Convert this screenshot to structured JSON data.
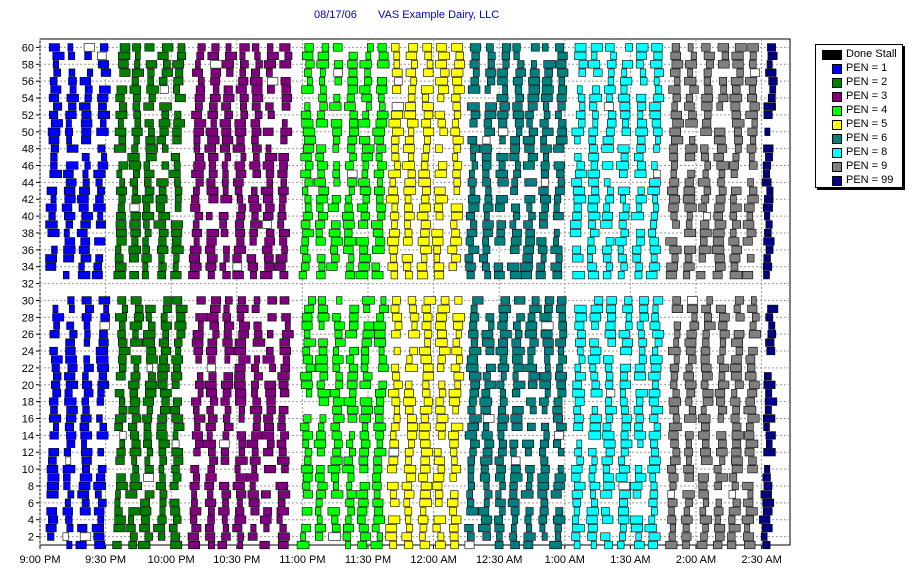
{
  "header": {
    "date": "08/17/06",
    "company": "VAS Example Dairy, LLC"
  },
  "colors": {
    "done": "#000000",
    "pen1": "#0000ff",
    "pen2": "#008000",
    "pen3": "#800080",
    "pen4": "#00ff00",
    "pen5": "#ffff00",
    "pen6": "#008080",
    "pen8": "#00ffff",
    "pen9": "#808080",
    "pen99": "#000080",
    "grid": "#999999"
  },
  "legend": [
    {
      "label": "Done Stall",
      "color_key": "done"
    },
    {
      "label": "PEN = 1",
      "color_key": "pen1"
    },
    {
      "label": "PEN = 2",
      "color_key": "pen2"
    },
    {
      "label": "PEN = 3",
      "color_key": "pen3"
    },
    {
      "label": "PEN = 4",
      "color_key": "pen4"
    },
    {
      "label": "PEN = 5",
      "color_key": "pen5"
    },
    {
      "label": "PEN = 6",
      "color_key": "pen6"
    },
    {
      "label": "PEN = 8",
      "color_key": "pen8"
    },
    {
      "label": "PEN = 9",
      "color_key": "pen9"
    },
    {
      "label": "PEN = 99",
      "color_key": "pen99"
    }
  ],
  "chart_data": {
    "type": "scatter",
    "title": "",
    "xlabel": "",
    "ylabel": "",
    "x_ticks": [
      "9:00 PM",
      "9:30 PM",
      "10:00 PM",
      "10:30 PM",
      "11:00 PM",
      "11:30 PM",
      "12:00 AM",
      "12:30 AM",
      "1:00 AM",
      "1:30 AM",
      "2:00 AM",
      "2:30 AM"
    ],
    "xlim": [
      "9:00 PM",
      "2:43 AM"
    ],
    "y_ticks": [
      2,
      4,
      6,
      8,
      10,
      12,
      14,
      16,
      18,
      20,
      22,
      24,
      26,
      28,
      30,
      32,
      34,
      36,
      38,
      40,
      42,
      44,
      46,
      48,
      50,
      52,
      54,
      56,
      58,
      60
    ],
    "ylim": [
      1,
      61
    ],
    "grid": true,
    "legend_position": "right",
    "series": [
      {
        "name": "PEN = 1",
        "color_key": "pen1",
        "start": "9:04 PM",
        "end": "9:33 PM"
      },
      {
        "name": "PEN = 2",
        "color_key": "pen2",
        "start": "9:35 PM",
        "end": "10:07 PM"
      },
      {
        "name": "PEN = 3",
        "color_key": "pen3",
        "start": "10:10 PM",
        "end": "10:56 PM"
      },
      {
        "name": "PEN = 4",
        "color_key": "pen4",
        "start": "11:00 PM",
        "end": "11:40 PM"
      },
      {
        "name": "PEN = 5",
        "color_key": "pen5",
        "start": "11:40 PM",
        "end": "12:15 AM"
      },
      {
        "name": "PEN = 6",
        "color_key": "pen6",
        "start": "12:16 AM",
        "end": "1:02 AM"
      },
      {
        "name": "PEN = 8",
        "color_key": "pen8",
        "start": "1:04 AM",
        "end": "1:46 AM"
      },
      {
        "name": "PEN = 9",
        "color_key": "pen9",
        "start": "1:48 AM",
        "end": "2:30 AM"
      },
      {
        "name": "PEN = 99",
        "color_key": "pen99",
        "start": "2:31 AM",
        "end": "2:38 AM"
      }
    ]
  }
}
